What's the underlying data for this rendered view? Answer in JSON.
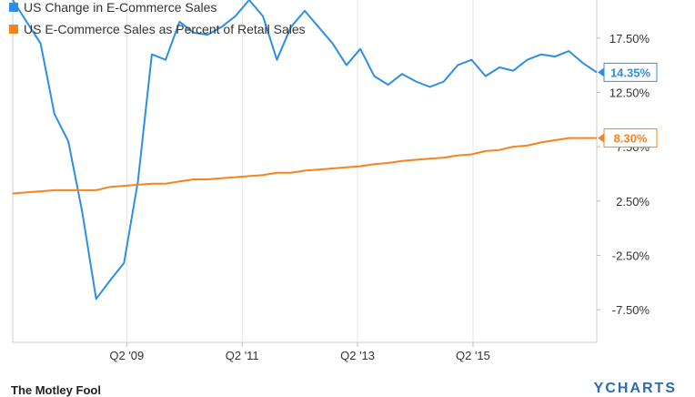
{
  "chart_data": {
    "type": "line",
    "title": "",
    "xlabel": "",
    "ylabel": "",
    "x_tick_labels": [
      "Q2 '09",
      "Q2 '11",
      "Q2 '13",
      "Q2 '15"
    ],
    "y_tick_labels": [
      "17.50%",
      "12.50%",
      "7.50%",
      "2.50%",
      "-2.50%",
      "-7.50%"
    ],
    "ylim": [
      -10.5,
      21.0
    ],
    "grid": "vertical",
    "legend_position": "top-left",
    "series": [
      {
        "name": "US Change in E-Commerce Sales",
        "color": "#2d8fe3",
        "end_label": "14.35%",
        "values": [
          21.0,
          19.0,
          17.0,
          10.5,
          8.0,
          1.5,
          -6.5,
          -4.8,
          -3.2,
          4.3,
          16.0,
          15.5,
          19.0,
          18.0,
          17.8,
          18.5,
          19.5,
          21.0,
          19.5,
          15.5,
          18.5,
          20.0,
          18.5,
          17.0,
          15.0,
          16.5,
          14.0,
          13.2,
          14.2,
          13.5,
          13.0,
          13.5,
          15.0,
          15.5,
          14.0,
          14.8,
          14.5,
          15.5,
          16.0,
          15.8,
          16.3,
          15.2,
          14.35
        ]
      },
      {
        "name": "US E-Commerce Sales as Percent of Retail Sales",
        "color": "#f5841f",
        "end_label": "8.30%",
        "values": [
          3.2,
          3.3,
          3.4,
          3.5,
          3.5,
          3.5,
          3.5,
          3.8,
          3.9,
          4.0,
          4.1,
          4.1,
          4.3,
          4.5,
          4.5,
          4.6,
          4.7,
          4.8,
          4.9,
          5.1,
          5.1,
          5.3,
          5.4,
          5.5,
          5.6,
          5.7,
          5.9,
          6.0,
          6.2,
          6.3,
          6.4,
          6.5,
          6.7,
          6.8,
          7.1,
          7.2,
          7.5,
          7.6,
          7.9,
          8.1,
          8.3,
          8.3,
          8.3
        ]
      }
    ]
  },
  "footer": {
    "brand_left": "The Motley Fool",
    "brand_right": "YCHARTS"
  }
}
